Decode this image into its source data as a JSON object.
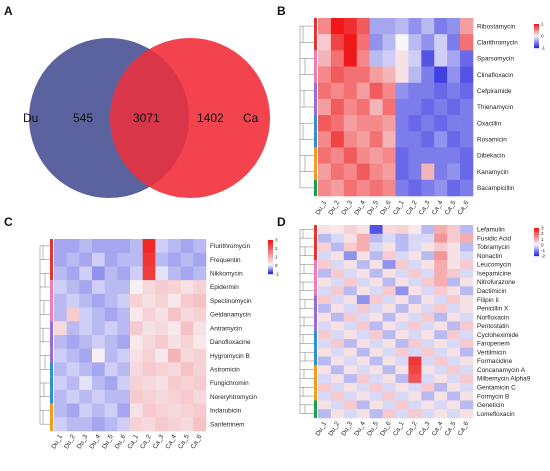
{
  "colors": {
    "low": "#2a2ae0",
    "mid": "#f7f7fb",
    "high": "#f01818",
    "venn_left": "#5b639e",
    "venn_right": "#f2434e",
    "venn_overlap": "#d9364a"
  },
  "panel_labels": [
    "A",
    "B",
    "C",
    "D"
  ],
  "chart_data": [
    {
      "type": "venn",
      "panel": "A",
      "sets": [
        "Du",
        "Ca"
      ],
      "only_left": "545",
      "overlap": "3071",
      "only_right": "1402"
    },
    {
      "type": "heatmap",
      "panel": "B",
      "legend_ticks": [
        "1",
        "0",
        "-1"
      ],
      "columns": [
        "Du_1",
        "Du_2",
        "Du_3",
        "Du_4",
        "Du_5",
        "Du_6",
        "Ca_1",
        "Ca_2",
        "Ca_3",
        "Ca_4",
        "Ca_5",
        "Ca_6"
      ],
      "rows": [
        "Ribostamycin",
        "Clarithromycin",
        "Sparsomycin",
        "Clinafloxacin",
        "Cefpiramide",
        "Thienamycin",
        "Oxacillin",
        "Rosamicin",
        "Dibekacin",
        "Kanamycin",
        "Bacampicillin"
      ],
      "values": [
        [
          0.5,
          1.0,
          0.9,
          0.7,
          -0.4,
          -0.4,
          -0.3,
          -0.5,
          -0.3,
          -0.6,
          -0.5,
          0.4
        ],
        [
          0.2,
          0.8,
          1.0,
          0.6,
          -0.5,
          -0.3,
          0.0,
          -0.3,
          -0.5,
          -0.2,
          -0.6,
          0.6
        ],
        [
          0.3,
          0.6,
          1.0,
          0.5,
          -0.3,
          -0.2,
          0.1,
          -0.2,
          -0.8,
          -0.2,
          -0.4,
          -0.7
        ],
        [
          0.5,
          0.7,
          0.6,
          0.6,
          0.4,
          0.3,
          0.1,
          -0.3,
          -0.6,
          -0.9,
          -0.5,
          -0.8
        ],
        [
          0.6,
          0.5,
          0.6,
          0.4,
          0.7,
          0.5,
          -0.5,
          -0.6,
          -0.6,
          -0.7,
          -0.6,
          -0.7
        ],
        [
          0.4,
          0.7,
          0.5,
          0.6,
          0.3,
          0.6,
          -0.6,
          -0.6,
          -0.7,
          -0.6,
          -0.7,
          -0.6
        ],
        [
          0.7,
          0.6,
          0.4,
          0.5,
          0.5,
          0.4,
          -0.6,
          -0.7,
          -0.6,
          -0.7,
          -0.6,
          -0.6
        ],
        [
          0.5,
          0.8,
          0.5,
          0.4,
          0.6,
          0.3,
          -0.6,
          -0.6,
          -0.7,
          -0.5,
          -0.7,
          -0.6
        ],
        [
          0.6,
          0.5,
          0.7,
          0.5,
          0.4,
          0.5,
          -0.7,
          -0.6,
          -0.6,
          -0.6,
          -0.6,
          -0.7
        ],
        [
          0.4,
          0.6,
          0.5,
          0.7,
          0.5,
          0.4,
          -0.7,
          -0.6,
          0.3,
          -0.6,
          -0.5,
          -0.7
        ],
        [
          0.5,
          0.4,
          0.6,
          0.5,
          0.6,
          0.5,
          -0.6,
          -0.7,
          -0.6,
          -0.5,
          -0.7,
          -0.6
        ]
      ]
    },
    {
      "type": "heatmap",
      "panel": "C",
      "legend_ticks": [
        "3",
        "2",
        "1",
        "0",
        "-1"
      ],
      "columns": [
        "Du_1",
        "Du_2",
        "Du_3",
        "Du_4",
        "Du_5",
        "Du_6",
        "Ca_1",
        "Ca_2",
        "Ca_3",
        "Ca_4",
        "Ca_5",
        "Ca_6"
      ],
      "rows": [
        "Flurithromycin",
        "Frequentin",
        "Nikkomycin",
        "Epidermin",
        "Spectinomycin",
        "Geldanamycin",
        "Antramycin",
        "Danofloxacine",
        "Hygromycin B",
        "Astromicin",
        "Fungichromin",
        "Noreryhtromycin",
        "Indarubicin",
        "Sanfetrinem"
      ],
      "values": [
        [
          -0.4,
          -0.4,
          -0.3,
          -0.4,
          -0.4,
          -0.4,
          -0.3,
          2.8,
          -0.2,
          -0.3,
          -0.4,
          -0.3
        ],
        [
          -0.4,
          -0.3,
          -0.4,
          -0.2,
          -0.4,
          -0.3,
          -0.3,
          2.6,
          -0.3,
          -0.4,
          -0.3,
          -0.4
        ],
        [
          -0.3,
          -0.4,
          -0.2,
          -0.5,
          -0.3,
          -0.4,
          -0.2,
          2.5,
          -0.1,
          -0.3,
          -0.4,
          -0.3
        ],
        [
          -0.2,
          -0.3,
          -0.4,
          -0.2,
          -0.3,
          -0.3,
          0.1,
          0.4,
          0.6,
          0.5,
          0.3,
          0.5
        ],
        [
          -0.3,
          -0.2,
          -0.3,
          -0.4,
          -0.3,
          -0.2,
          0.5,
          0.3,
          0.5,
          0.2,
          0.6,
          0.7
        ],
        [
          -0.3,
          0.6,
          -0.2,
          -0.3,
          -0.4,
          -0.3,
          0.2,
          0.5,
          0.3,
          0.7,
          0.4,
          0.5
        ],
        [
          0.4,
          -0.3,
          -0.2,
          -0.3,
          -0.2,
          -0.3,
          0.6,
          0.3,
          0.4,
          0.2,
          0.7,
          0.3
        ],
        [
          -0.3,
          -0.4,
          -0.3,
          -0.2,
          -0.3,
          -0.4,
          0.2,
          0.4,
          0.6,
          0.3,
          0.5,
          0.2
        ],
        [
          -0.2,
          -0.3,
          -0.4,
          0.1,
          -0.3,
          -0.2,
          0.3,
          0.5,
          0.2,
          0.9,
          0.4,
          0.5
        ],
        [
          -0.3,
          -0.2,
          -0.3,
          -0.4,
          -0.2,
          -0.3,
          0.4,
          0.6,
          0.5,
          0.4,
          0.7,
          0.5
        ],
        [
          -0.2,
          -0.3,
          -0.1,
          -0.3,
          -0.4,
          -0.2,
          0.5,
          0.4,
          0.3,
          0.6,
          0.5,
          0.6
        ],
        [
          -0.3,
          -0.2,
          -0.3,
          -0.2,
          -0.3,
          -0.3,
          0.6,
          0.5,
          0.4,
          0.5,
          0.6,
          0.4
        ],
        [
          -0.3,
          -0.4,
          -0.2,
          -0.3,
          -0.2,
          -0.4,
          0.3,
          0.6,
          0.5,
          0.4,
          0.5,
          0.6
        ],
        [
          -0.2,
          -0.3,
          -0.3,
          -0.4,
          -0.3,
          -0.2,
          0.5,
          0.4,
          0.6,
          0.5,
          0.4,
          0.7
        ]
      ]
    },
    {
      "type": "heatmap",
      "panel": "D",
      "legend_ticks": [
        "3",
        "2",
        "1",
        "0",
        "-1",
        "-2"
      ],
      "columns": [
        "Du_1",
        "Du_2",
        "Du_3",
        "Du_4",
        "Du_5",
        "Du_6",
        "Ca_1",
        "Ca_2",
        "Ca_3",
        "Ca_4",
        "Ca_5",
        "Ca_6"
      ],
      "rows": [
        "Lefamulin",
        "Fusidic Acid",
        "Tobramycin",
        "Nonactin",
        "Leucomycin",
        "Isepamicine",
        "Nitrofurazone",
        "Dactimicin",
        "Filipin Ii",
        "Penicillin X",
        "Norfloxacin",
        "Pentostatin",
        "Cycloheximide",
        "Faropenem",
        "Vertilmicin",
        "Formacidine",
        "Concanamycin A",
        "Milbemycin Alpha9",
        "Gentamicin C",
        "Formycin B",
        "Geneticin",
        "Lomefloxacin"
      ],
      "values": [
        [
          0.3,
          0.2,
          0.5,
          0.3,
          -1.6,
          0.4,
          0.5,
          0.2,
          -0.6,
          1.0,
          0.6,
          -0.6
        ],
        [
          -0.6,
          -0.3,
          0.3,
          1.0,
          -0.6,
          -0.3,
          -0.6,
          -0.3,
          -0.3,
          1.3,
          0.6,
          1.0
        ],
        [
          0.5,
          -0.6,
          0.6,
          1.0,
          -0.3,
          0.3,
          -0.6,
          -0.3,
          0.3,
          0.6,
          0.3,
          -0.6
        ],
        [
          -0.3,
          0.3,
          -1.0,
          0.3,
          -0.6,
          0.6,
          -0.3,
          0.3,
          -0.6,
          1.3,
          0.3,
          -0.3
        ],
        [
          0.6,
          -0.3,
          0.3,
          -0.6,
          0.3,
          -1.0,
          0.6,
          -0.3,
          0.3,
          1.0,
          0.3,
          0.6
        ],
        [
          -0.6,
          0.6,
          -0.3,
          0.3,
          -0.6,
          0.3,
          -0.3,
          0.6,
          -0.3,
          1.0,
          0.6,
          -0.3
        ],
        [
          0.3,
          -0.3,
          0.6,
          -0.3,
          0.3,
          -0.6,
          0.3,
          -0.3,
          0.6,
          1.0,
          -0.6,
          0.3
        ],
        [
          -0.3,
          0.6,
          -0.6,
          0.3,
          -0.3,
          0.6,
          -1.0,
          0.3,
          -0.3,
          0.6,
          0.3,
          -0.6
        ],
        [
          0.6,
          -0.3,
          0.3,
          -1.0,
          0.6,
          -0.3,
          0.3,
          -0.6,
          0.3,
          -0.3,
          0.6,
          0.3
        ],
        [
          -0.6,
          0.3,
          -0.3,
          0.6,
          -0.3,
          0.3,
          -0.6,
          0.3,
          -0.3,
          0.6,
          -0.3,
          0.3
        ],
        [
          0.3,
          -0.6,
          0.6,
          -0.3,
          0.3,
          -0.6,
          0.3,
          -0.3,
          0.6,
          -0.6,
          0.3,
          -0.3
        ],
        [
          -0.3,
          0.3,
          -0.3,
          0.6,
          -0.6,
          0.3,
          -0.3,
          0.6,
          -0.3,
          0.3,
          -0.6,
          0.6
        ],
        [
          0.6,
          -0.3,
          0.3,
          -0.3,
          0.6,
          -0.6,
          0.3,
          -0.3,
          0.3,
          -0.6,
          0.6,
          -0.3
        ],
        [
          -0.3,
          0.6,
          -0.6,
          0.3,
          -0.3,
          0.3,
          -0.6,
          0.6,
          -0.3,
          0.3,
          -0.3,
          0.6
        ],
        [
          0.3,
          -0.3,
          0.3,
          -0.6,
          0.3,
          -0.3,
          0.6,
          -0.3,
          0.6,
          -0.3,
          0.3,
          -0.6
        ],
        [
          -0.6,
          0.3,
          -0.3,
          0.3,
          -0.6,
          0.3,
          -0.3,
          2.6,
          -0.3,
          0.6,
          -0.3,
          0.3
        ],
        [
          0.3,
          -0.6,
          0.3,
          -0.3,
          0.3,
          -0.6,
          0.3,
          2.4,
          0.3,
          -0.3,
          0.6,
          -0.3
        ],
        [
          -0.3,
          0.3,
          -0.6,
          0.6,
          -0.3,
          0.3,
          -0.6,
          2.2,
          -0.3,
          0.3,
          -0.3,
          0.6
        ],
        [
          0.6,
          -0.3,
          0.3,
          -0.3,
          0.6,
          -0.3,
          0.3,
          -0.3,
          0.6,
          -0.6,
          0.3,
          -0.3
        ],
        [
          -0.3,
          0.6,
          -0.3,
          0.3,
          -0.3,
          0.6,
          -0.3,
          0.3,
          -0.6,
          0.3,
          -0.6,
          0.3
        ],
        [
          0.3,
          -0.3,
          0.6,
          -0.6,
          0.3,
          -0.3,
          0.6,
          -0.3,
          0.3,
          -0.3,
          0.3,
          -0.6
        ],
        [
          -0.6,
          0.3,
          -0.3,
          0.3,
          -0.6,
          0.6,
          -0.3,
          0.6,
          -0.3,
          0.3,
          -0.3,
          0.3
        ]
      ]
    }
  ]
}
